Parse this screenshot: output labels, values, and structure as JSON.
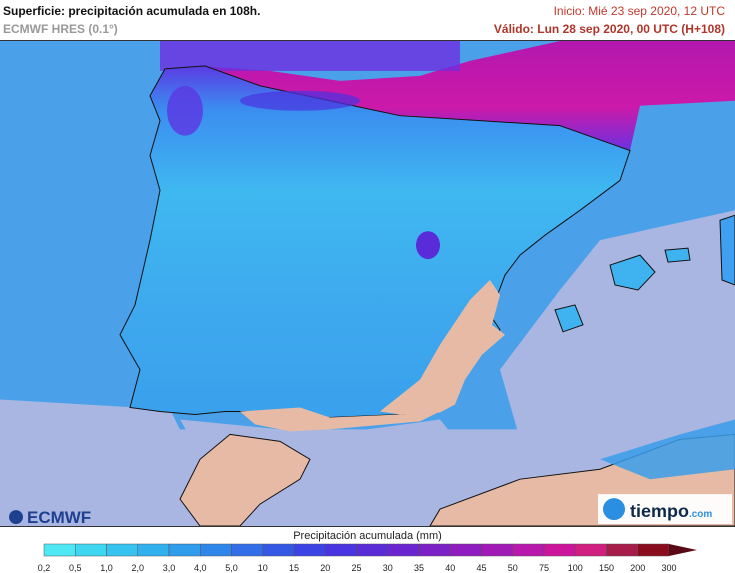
{
  "header": {
    "title": "Superficie: precipitación acumulada en 108h.",
    "model": "ECMWF HRES (0.1°)",
    "init": "Inicio: Mié 23 sep 2020, 12 UTC",
    "valid": "Válido: Lun 28 sep 2020, 00 UTC (H+108)"
  },
  "logos": {
    "left": "ECMWF",
    "right_main": "tiempo",
    "right_suffix": ".com"
  },
  "legend": {
    "title": "Precipitación acumulada (mm)",
    "ticks": [
      "0,2",
      "0,5",
      "1,0",
      "2,0",
      "3,0",
      "4,0",
      "5,0",
      "10",
      "15",
      "20",
      "25",
      "30",
      "35",
      "40",
      "45",
      "50",
      "75",
      "100",
      "150",
      "200",
      "300"
    ],
    "colors": [
      "#4ee8f5",
      "#3fd6f2",
      "#36c3f0",
      "#31b0ee",
      "#2f9cec",
      "#2f86ea",
      "#316ee8",
      "#3457e6",
      "#3b43e4",
      "#4a33e0",
      "#5a2bd8",
      "#6b25d0",
      "#7c20c8",
      "#8e1cc0",
      "#a21ab6",
      "#b818ac",
      "#cc159b",
      "#d11f7f",
      "#a81c4a",
      "#8a0d1d"
    ],
    "map_colors": {
      "sea": "#a9b6e2",
      "land_dry": "#e6baa5",
      "coast_line": "#111111"
    }
  }
}
